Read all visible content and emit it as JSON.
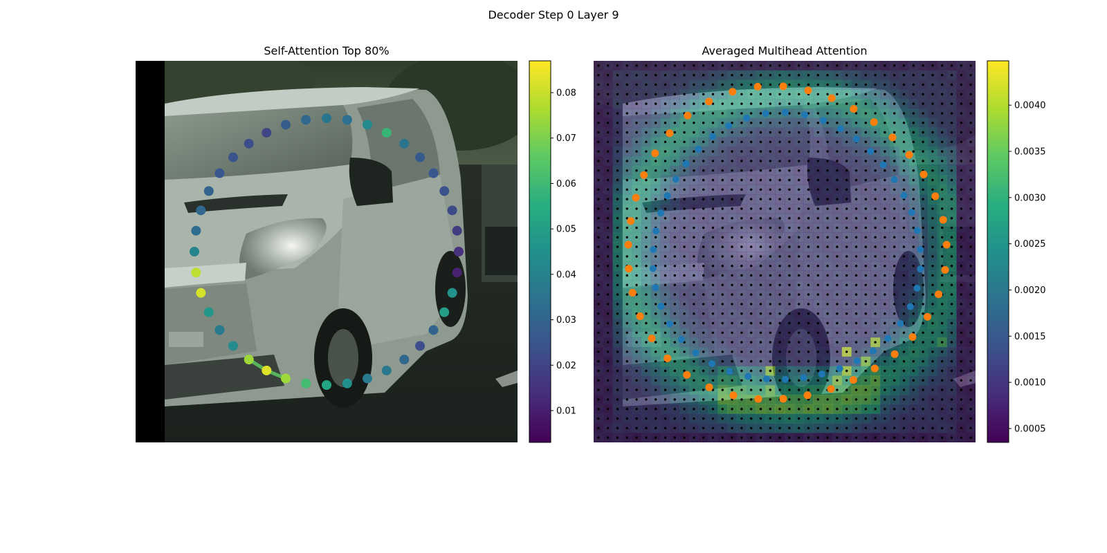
{
  "figure": {
    "suptitle": "Decoder Step 0 Layer 9"
  },
  "colormap": "viridis",
  "chart_data": [
    {
      "type": "scatter",
      "title": "Self-Attention Top 80%",
      "background": "grayscale photo of a white van (front three-quarter view)",
      "colorbar": {
        "min": 0.003,
        "max": 0.087,
        "ticks": [
          "0.01",
          "0.02",
          "0.03",
          "0.04",
          "0.05",
          "0.06",
          "0.07",
          "0.08"
        ],
        "tick_values": [
          0.01,
          0.02,
          0.03,
          0.04,
          0.05,
          0.06,
          0.07,
          0.08
        ]
      },
      "point_count": 40,
      "point_values": [
        0.041,
        0.033,
        0.031,
        0.03,
        0.026,
        0.025,
        0.023,
        0.021,
        0.028,
        0.032,
        0.036,
        0.034,
        0.043,
        0.059,
        0.036,
        0.027,
        0.026,
        0.024,
        0.022,
        0.018,
        0.015,
        0.011,
        0.046,
        0.05,
        0.03,
        0.023,
        0.031,
        0.037,
        0.038,
        0.045,
        0.052,
        0.061,
        0.075,
        0.083,
        0.075,
        0.043,
        0.038,
        0.048,
        0.082,
        0.079
      ],
      "highlight_edges": [
        [
          32,
          33
        ],
        [
          33,
          34
        ]
      ]
    },
    {
      "type": "heatmap",
      "title": "Averaged Multihead Attention",
      "background": "purple-tinted photo of the same van with grid dots",
      "colorbar": {
        "min": 0.00035,
        "max": 0.00448,
        "ticks": [
          "0.0005",
          "0.0010",
          "0.0015",
          "0.0020",
          "0.0025",
          "0.0030",
          "0.0035",
          "0.0040"
        ],
        "tick_values": [
          0.0005,
          0.001,
          0.0015,
          0.002,
          0.0025,
          0.003,
          0.0035,
          0.004
        ]
      },
      "grid": {
        "rows": 40,
        "cols": 40
      },
      "hot_spots": [
        {
          "row": 29,
          "col": 29,
          "value": 0.004
        },
        {
          "row": 30,
          "col": 26,
          "value": 0.0042
        },
        {
          "row": 31,
          "col": 28,
          "value": 0.0038
        },
        {
          "row": 32,
          "col": 18,
          "value": 0.0039
        },
        {
          "row": 32,
          "col": 26,
          "value": 0.004
        },
        {
          "row": 33,
          "col": 25,
          "value": 0.0038
        },
        {
          "row": 34,
          "col": 18,
          "value": 0.0036
        },
        {
          "row": 35,
          "col": 20,
          "value": 0.0034
        },
        {
          "row": 29,
          "col": 36,
          "value": 0.0033
        }
      ],
      "series": [
        {
          "color": "#1f77b4",
          "point_count": 44
        },
        {
          "color": "#ff7f0e",
          "point_count": 40
        }
      ]
    }
  ]
}
